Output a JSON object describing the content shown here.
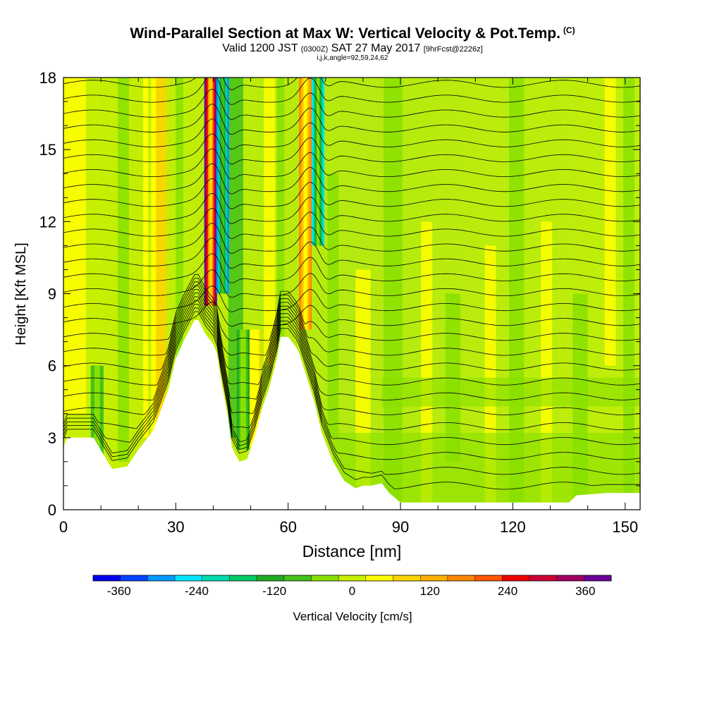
{
  "title": {
    "main": "Wind-Parallel Section at Max W: Vertical Velocity & Pot.Temp.",
    "copyright": "(C)",
    "valid_prefix": "Valid 1200 JST",
    "valid_utc": "(0300Z)",
    "valid_date": "SAT 27 May 2017",
    "forecast_info": "[9hrFcst@2226z]",
    "grid_info": "i,j,k,angle=92,59,24,62"
  },
  "chart_data": {
    "type": "heatmap",
    "xlabel": "Distance [nm]",
    "ylabel": "Height [Kft MSL]",
    "xlim": [
      0,
      154
    ],
    "ylim": [
      0,
      18
    ],
    "x_ticks": [
      "0",
      "30",
      "60",
      "90",
      "120",
      "150"
    ],
    "x_tick_values": [
      0,
      30,
      60,
      90,
      120,
      150
    ],
    "y_ticks": [
      "0",
      "3",
      "6",
      "9",
      "12",
      "15",
      "18"
    ],
    "y_tick_values": [
      0,
      3,
      6,
      9,
      12,
      15,
      18
    ],
    "colorbar": {
      "label": "Vertical Velocity [cm/s]",
      "range": [
        -400,
        400
      ],
      "tick_labels": [
        "-360",
        "-240",
        "-120",
        "0",
        "120",
        "240",
        "360"
      ],
      "tick_values": [
        -360,
        -240,
        -120,
        0,
        120,
        240,
        360
      ],
      "colors": [
        "#0000ee",
        "#0044ff",
        "#0099ff",
        "#00e5ff",
        "#00dcb0",
        "#00cc66",
        "#22aa22",
        "#44c11a",
        "#88e000",
        "#c8f000",
        "#ffff00",
        "#ffd400",
        "#ffb000",
        "#ff8800",
        "#ff5500",
        "#ee0000",
        "#cc0033",
        "#a00060",
        "#6a009a"
      ]
    },
    "terrain_profile": {
      "x": [
        0,
        1,
        8,
        13,
        17,
        20,
        24,
        28,
        30,
        32,
        34,
        35,
        36,
        38,
        40,
        41,
        42,
        44,
        45,
        47,
        49,
        51,
        53,
        55,
        57,
        58,
        60,
        62,
        63,
        65,
        67,
        69,
        72,
        75,
        78,
        80,
        82,
        85,
        87,
        90,
        95,
        105,
        120,
        135,
        137,
        145,
        150,
        154
      ],
      "height": [
        2.6,
        3.0,
        3.0,
        1.7,
        1.8,
        2.5,
        3.3,
        5.0,
        6.3,
        7.0,
        7.6,
        7.9,
        7.9,
        7.3,
        6.9,
        6.5,
        5.5,
        3.8,
        2.6,
        2.0,
        2.1,
        3.0,
        4.2,
        5.1,
        6.3,
        7.2,
        7.2,
        6.8,
        6.5,
        5.5,
        4.5,
        3.2,
        2.0,
        1.2,
        0.9,
        1.0,
        1.0,
        1.1,
        0.7,
        0.3,
        0.3,
        0.3,
        0.3,
        0.3,
        0.6,
        0.7,
        0.7,
        0.7
      ]
    },
    "vertical_velocity_features": [
      {
        "x_center": 39.3,
        "y_range": [
          8.5,
          18
        ],
        "value": 380
      },
      {
        "x_center": 42.5,
        "y_range": [
          9,
          18
        ],
        "value": -280
      },
      {
        "x_center": 64.6,
        "y_range": [
          7.5,
          18
        ],
        "value": 180
      },
      {
        "x_center": 68.0,
        "y_range": [
          11,
          18
        ],
        "value": -240
      },
      {
        "x_center": 51.0,
        "y_range": [
          2.5,
          7.5
        ],
        "value": 90
      },
      {
        "x_center": 48.0,
        "y_range": [
          2.5,
          7.5
        ],
        "value": -120
      },
      {
        "x_center": 9.0,
        "y_range": [
          2.0,
          6.0
        ],
        "value": -100
      },
      {
        "x_center": 23.0,
        "y_range": [
          3.0,
          18
        ],
        "value": 50
      }
    ]
  }
}
